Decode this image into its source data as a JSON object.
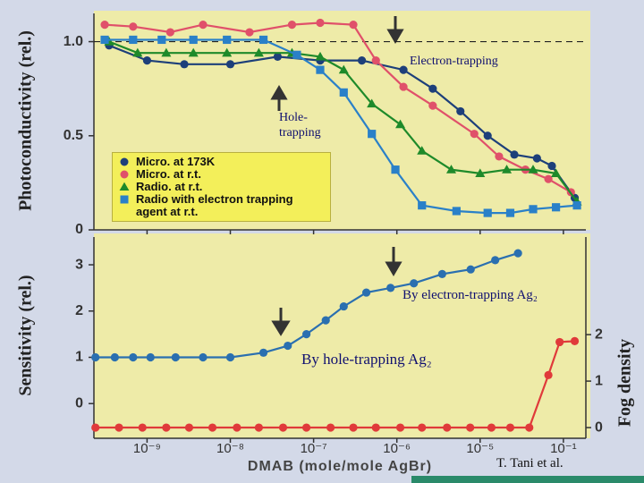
{
  "x_axis": {
    "label": "DMAB (mole/mole AgBr)",
    "scale": "log",
    "xlim": [
      2.3e-10,
      1.2
    ],
    "xticks": [
      {
        "value": 1e-09,
        "label": "10⁻⁹"
      },
      {
        "value": 1e-08,
        "label": "10⁻⁸"
      },
      {
        "value": 1e-07,
        "label": "10⁻⁷"
      },
      {
        "value": 1e-06,
        "label": "10⁻⁶"
      },
      {
        "value": 1e-05,
        "label": "10⁻⁵"
      },
      {
        "value": 0.1,
        "label": "10⁻¹"
      }
    ]
  },
  "credit": "T. Tani et al.",
  "chart_data": [
    {
      "type": "line",
      "ylabel": "Photoconductivity (rel.)",
      "ylim": [
        0,
        1.15
      ],
      "yticks": [
        0,
        0.5,
        {
          "value": 1,
          "label": "1.0"
        }
      ],
      "reference_line": 1,
      "legend": "lower left",
      "annotations": [
        "Electron-trapping",
        "Hole-\ntrapping"
      ],
      "series": [
        {
          "name": "Micro. at 173K",
          "color": "#1d3f7a",
          "marker": "circle",
          "x": [
            3.5e-10,
            1e-09,
            2.8e-09,
            1e-08,
            3.7e-08,
            1.2e-07,
            3.8e-07,
            1.2e-06,
            2.7e-06,
            5.8e-06,
            2.3e-05,
            0.00044,
            0.0054,
            0.028,
            0.35
          ],
          "values": [
            0.98,
            0.9,
            0.88,
            0.88,
            0.92,
            0.9,
            0.9,
            0.85,
            0.75,
            0.63,
            0.5,
            0.4,
            0.38,
            0.34,
            0.17
          ]
        },
        {
          "name": "Micro. at r.t.",
          "color": "#e0506a",
          "marker": "circle",
          "x": [
            3.1e-10,
            6.8e-10,
            1.9e-09,
            4.7e-09,
            1.7e-08,
            5.5e-08,
            1.2e-07,
            3e-07,
            5.6e-07,
            1.2e-06,
            2.7e-06,
            8.5e-06,
            8.1e-05,
            0.0015,
            0.019,
            0.23
          ],
          "values": [
            1.09,
            1.08,
            1.05,
            1.09,
            1.05,
            1.09,
            1.1,
            1.09,
            0.9,
            0.76,
            0.66,
            0.51,
            0.39,
            0.32,
            0.27,
            0.2
          ]
        },
        {
          "name": "Radio. at r.t.",
          "color": "#1e8a2a",
          "marker": "triangle",
          "x": [
            3.5e-10,
            7.7e-10,
            1.7e-09,
            3.6e-09,
            9.1e-09,
            2.2e-08,
            5.5e-08,
            1.2e-07,
            2.3e-07,
            5e-07,
            1.1e-06,
            2e-06,
            4.5e-06,
            1e-05,
            0.00019,
            0.0035,
            0.044,
            0.45
          ],
          "values": [
            1,
            0.94,
            0.94,
            0.94,
            0.94,
            0.94,
            0.94,
            0.92,
            0.85,
            0.67,
            0.56,
            0.42,
            0.32,
            0.3,
            0.32,
            0.32,
            0.3,
            0.15
          ]
        },
        {
          "name": "Radio with electron trapping agent at r.t.",
          "color": "#2a80c8",
          "marker": "square",
          "x": [
            3.1e-10,
            6.8e-10,
            1.5e-09,
            3.6e-09,
            9.1e-09,
            2.5e-08,
            6.3e-08,
            1.2e-07,
            2.3e-07,
            5e-07,
            9.6e-07,
            2e-06,
            5.2e-06,
            2.3e-05,
            0.00028,
            0.0035,
            0.044,
            0.45
          ],
          "values": [
            1.01,
            1.01,
            1.01,
            1.01,
            1.01,
            1.01,
            0.93,
            0.85,
            0.73,
            0.51,
            0.32,
            0.13,
            0.1,
            0.09,
            0.09,
            0.11,
            0.12,
            0.13
          ]
        }
      ]
    },
    {
      "type": "line",
      "ylabel": "Sensitivity (rel.)",
      "y2label": "Fog density",
      "ylim": [
        -0.75,
        3.6
      ],
      "yticks": [
        0,
        1,
        2,
        3
      ],
      "y2lim": [
        -0.23,
        4.1
      ],
      "y2ticks": [
        0,
        1,
        2
      ],
      "annotations": [
        "By electron-trapping Ag₂",
        "By hole-trapping Ag₂"
      ],
      "series": [
        {
          "color": "#2a6fb0",
          "marker": "circle",
          "x": [
            2.4e-10,
            4.1e-10,
            6.8e-10,
            1.1e-09,
            2.2e-09,
            4.7e-09,
            1e-08,
            2.5e-08,
            4.9e-08,
            8.2e-08,
            1.4e-07,
            2.3e-07,
            4.3e-07,
            8.4e-07,
            1.6e-06,
            3.5e-06,
            7.7e-06,
            5.3e-05,
            0.00066
          ],
          "values": [
            1,
            1,
            1,
            1,
            1,
            1,
            1,
            1.1,
            1.25,
            1.5,
            1.8,
            2.1,
            2.4,
            2.5,
            2.6,
            2.8,
            2.9,
            3.1,
            3.25
          ]
        },
        {
          "color": "#e03a3a",
          "marker": "circle",
          "axis": "y2",
          "x": [
            2.4e-10,
            4.6e-10,
            8.8e-10,
            1.7e-09,
            3.2e-09,
            6.1e-09,
            1.2e-08,
            2.2e-08,
            4.3e-08,
            8.2e-08,
            1.6e-07,
            3e-07,
            5.6e-07,
            1.1e-06,
            2e-06,
            4e-06,
            7.6e-06,
            3.5e-05,
            0.00028,
            0.0023,
            0.019,
            0.066,
            0.35
          ],
          "values": [
            0,
            0,
            0,
            0,
            0,
            0,
            0,
            0,
            0,
            0,
            0,
            0,
            0,
            0,
            0,
            0,
            0,
            0,
            0,
            0,
            1.13,
            1.84,
            1.86
          ]
        }
      ]
    }
  ]
}
